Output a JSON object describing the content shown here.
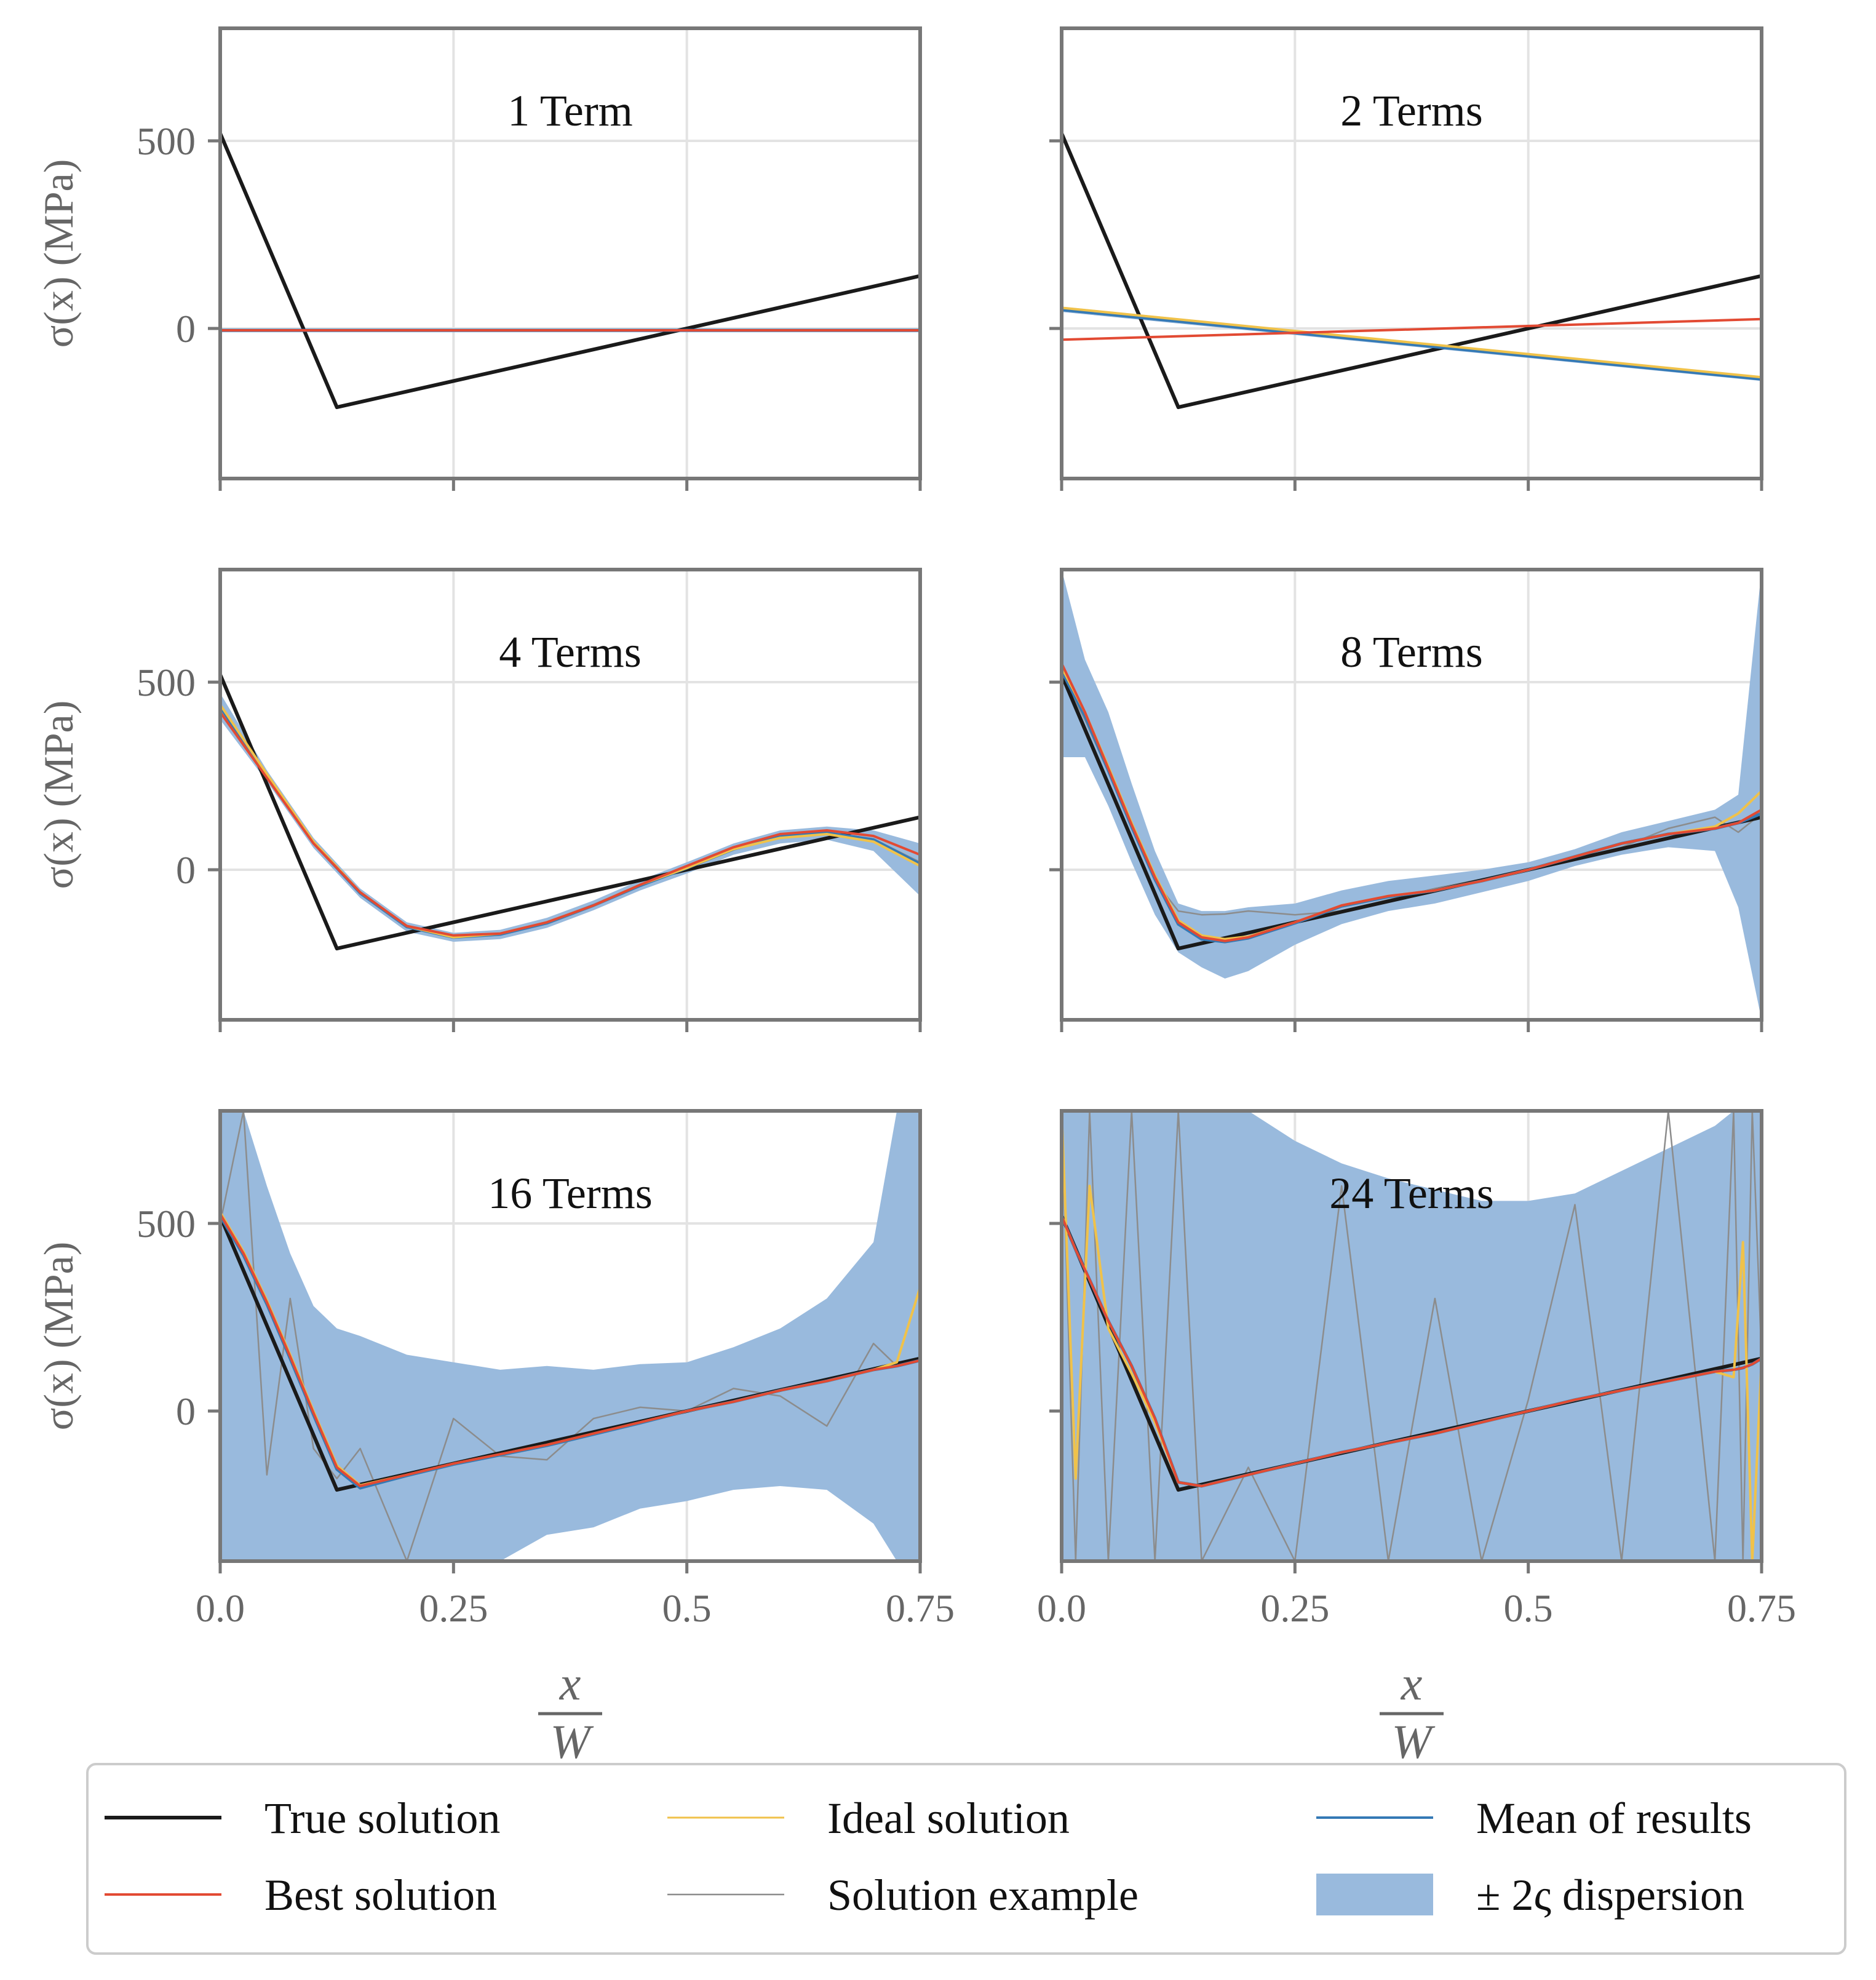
{
  "chart_data": {
    "type": "line",
    "layout": "3 rows x 2 columns of subplots, shared axes",
    "xlabel": {
      "numerator": "x",
      "denominator": "W"
    },
    "ylabel": "σ(x) (MPa)",
    "xlim": [
      0,
      0.75
    ],
    "ylim": [
      -400,
      800
    ],
    "xticks": [
      0,
      0.25,
      0.5,
      0.75
    ],
    "xtick_labels": [
      "0.0",
      "0.25",
      "0.5",
      "0.75"
    ],
    "yticks": [
      0,
      500
    ],
    "ytick_labels": [
      "0",
      "500"
    ],
    "grid": true,
    "legend_position": "bottom-center",
    "legend": [
      {
        "key": "true",
        "label": "True solution",
        "color": "#1a1a1a"
      },
      {
        "key": "best",
        "label": "Best solution",
        "color": "#e24a33"
      },
      {
        "key": "ideal",
        "label": "Ideal solution",
        "color": "#f0c24a"
      },
      {
        "key": "example",
        "label": "Solution example",
        "color": "#8c8c8c"
      },
      {
        "key": "mean",
        "label": "Mean of results",
        "color": "#3479b5"
      },
      {
        "key": "band",
        "label": "± 2ς dispersion",
        "color": "#99badd"
      }
    ],
    "true_solution": {
      "x": [
        0,
        0.125,
        0.75
      ],
      "y": [
        520,
        -210,
        140
      ]
    },
    "panels": [
      {
        "title": "1 Term",
        "x": [
          0,
          0.75
        ],
        "best": [
          -5,
          -5
        ],
        "ideal": [
          -5,
          -5
        ],
        "mean": [
          -5,
          -5
        ],
        "example": [
          -5,
          -5
        ],
        "band_upper": [
          0,
          0
        ],
        "band_lower": [
          -10,
          -10
        ]
      },
      {
        "title": "2 Terms",
        "x": [
          0,
          0.75
        ],
        "best": [
          -30,
          25
        ],
        "ideal": [
          55,
          -130
        ],
        "mean": [
          50,
          -135
        ],
        "example": [
          48,
          -135
        ],
        "band_upper": [
          58,
          -128
        ],
        "band_lower": [
          44,
          -140
        ]
      },
      {
        "title": "4 Terms",
        "x": [
          0,
          0.05,
          0.1,
          0.15,
          0.2,
          0.25,
          0.3,
          0.35,
          0.4,
          0.45,
          0.5,
          0.55,
          0.6,
          0.65,
          0.7,
          0.75
        ],
        "best": [
          420,
          245,
          70,
          -60,
          -150,
          -175,
          -170,
          -140,
          -95,
          -40,
          10,
          60,
          95,
          105,
          90,
          40
        ],
        "ideal": [
          440,
          255,
          75,
          -60,
          -150,
          -180,
          -170,
          -140,
          -95,
          -40,
          5,
          55,
          85,
          95,
          75,
          10
        ],
        "mean": [
          435,
          250,
          72,
          -62,
          -152,
          -180,
          -172,
          -142,
          -95,
          -42,
          5,
          55,
          88,
          98,
          80,
          15
        ],
        "example": [
          430,
          248,
          70,
          -60,
          -150,
          -178,
          -170,
          -140,
          -95,
          -40,
          8,
          58,
          90,
          100,
          82,
          20
        ],
        "band_upper": [
          470,
          265,
          85,
          -50,
          -140,
          -168,
          -160,
          -128,
          -82,
          -28,
          20,
          70,
          105,
          115,
          105,
          70
        ],
        "band_lower": [
          400,
          235,
          58,
          -75,
          -165,
          -192,
          -185,
          -155,
          -108,
          -55,
          -10,
          40,
          70,
          80,
          50,
          -70
        ]
      },
      {
        "title": "8 Terms",
        "x": [
          0,
          0.025,
          0.05,
          0.075,
          0.1,
          0.125,
          0.15,
          0.175,
          0.2,
          0.25,
          0.3,
          0.35,
          0.4,
          0.45,
          0.5,
          0.55,
          0.6,
          0.65,
          0.7,
          0.725,
          0.75
        ],
        "best": [
          550,
          420,
          270,
          120,
          -20,
          -140,
          -180,
          -190,
          -180,
          -140,
          -95,
          -70,
          -55,
          -30,
          0,
          35,
          70,
          95,
          110,
          125,
          160
        ],
        "ideal": [
          540,
          420,
          275,
          125,
          -15,
          -135,
          -175,
          -185,
          -178,
          -140,
          -95,
          -70,
          -55,
          -30,
          0,
          35,
          70,
          95,
          115,
          150,
          210
        ],
        "mean": [
          530,
          410,
          265,
          115,
          -25,
          -145,
          -185,
          -192,
          -182,
          -142,
          -97,
          -72,
          -55,
          -30,
          0,
          35,
          70,
          95,
          110,
          125,
          150
        ],
        "example": [
          520,
          400,
          260,
          110,
          -30,
          -110,
          -120,
          -118,
          -110,
          -120,
          -110,
          -80,
          -50,
          -25,
          0,
          30,
          60,
          110,
          140,
          100,
          150
        ],
        "band_upper": [
          800,
          560,
          420,
          230,
          50,
          -90,
          -110,
          -110,
          -100,
          -90,
          -55,
          -30,
          -15,
          0,
          20,
          55,
          100,
          130,
          160,
          200,
          800
        ],
        "band_lower": [
          300,
          300,
          170,
          20,
          -120,
          -220,
          -260,
          -290,
          -270,
          -200,
          -145,
          -110,
          -90,
          -60,
          -30,
          10,
          40,
          60,
          50,
          -100,
          -400
        ]
      },
      {
        "title": "16 Terms",
        "x": [
          0,
          0.025,
          0.05,
          0.075,
          0.1,
          0.125,
          0.15,
          0.2,
          0.25,
          0.3,
          0.35,
          0.4,
          0.45,
          0.5,
          0.55,
          0.6,
          0.65,
          0.7,
          0.725,
          0.75
        ],
        "best": [
          525,
          420,
          290,
          145,
          -5,
          -150,
          -200,
          -170,
          -140,
          -115,
          -90,
          -60,
          -30,
          0,
          25,
          55,
          80,
          110,
          120,
          135
        ],
        "ideal": [
          530,
          425,
          295,
          150,
          0,
          -145,
          -198,
          -170,
          -140,
          -115,
          -90,
          -60,
          -30,
          0,
          25,
          55,
          80,
          110,
          130,
          330
        ],
        "mean": [
          520,
          415,
          285,
          140,
          -10,
          -155,
          -205,
          -172,
          -142,
          -117,
          -92,
          -62,
          -32,
          0,
          25,
          55,
          80,
          110,
          120,
          135
        ],
        "example": [
          500,
          800,
          -170,
          300,
          -100,
          -180,
          -100,
          -400,
          -20,
          -120,
          -130,
          -20,
          10,
          0,
          60,
          40,
          -40,
          180,
          120,
          140
        ],
        "band_upper": [
          800,
          800,
          600,
          420,
          280,
          220,
          200,
          150,
          130,
          110,
          120,
          110,
          125,
          130,
          170,
          220,
          300,
          450,
          800,
          800
        ],
        "band_lower": [
          -400,
          -400,
          -400,
          -400,
          -400,
          -400,
          -400,
          -400,
          -400,
          -400,
          -330,
          -310,
          -260,
          -240,
          -210,
          -200,
          -210,
          -300,
          -400,
          -400
        ]
      },
      {
        "title": "24 Terms",
        "x": [
          0,
          0.015,
          0.03,
          0.05,
          0.075,
          0.1,
          0.125,
          0.15,
          0.2,
          0.25,
          0.3,
          0.35,
          0.4,
          0.45,
          0.5,
          0.55,
          0.6,
          0.65,
          0.7,
          0.72,
          0.73,
          0.74,
          0.75
        ],
        "best": [
          520,
          430,
          350,
          240,
          120,
          -20,
          -190,
          -200,
          -170,
          -140,
          -110,
          -85,
          -60,
          -30,
          0,
          30,
          55,
          80,
          105,
          110,
          115,
          125,
          140
        ],
        "ideal": [
          800,
          -180,
          600,
          220,
          100,
          -30,
          -190,
          -200,
          -170,
          -140,
          -110,
          -85,
          -60,
          -30,
          0,
          30,
          55,
          80,
          105,
          90,
          450,
          -400,
          140
        ],
        "mean": [
          520,
          430,
          350,
          240,
          120,
          -20,
          -190,
          -200,
          -170,
          -140,
          -110,
          -85,
          -60,
          -30,
          0,
          30,
          55,
          80,
          105,
          110,
          115,
          125,
          140
        ],
        "example": [
          800,
          -400,
          800,
          -400,
          800,
          -400,
          800,
          -400,
          -150,
          -400,
          600,
          -400,
          300,
          -400,
          30,
          550,
          -400,
          800,
          -400,
          800,
          -400,
          800,
          140
        ],
        "band_upper": [
          800,
          800,
          800,
          800,
          800,
          800,
          800,
          800,
          800,
          720,
          660,
          620,
          590,
          560,
          560,
          580,
          640,
          700,
          760,
          800,
          800,
          800,
          800
        ],
        "band_lower": [
          -400,
          -400,
          -400,
          -400,
          -400,
          -400,
          -400,
          -400,
          -400,
          -400,
          -400,
          -400,
          -400,
          -400,
          -400,
          -400,
          -400,
          -400,
          -400,
          -400,
          -400,
          -400,
          -400
        ]
      }
    ]
  }
}
